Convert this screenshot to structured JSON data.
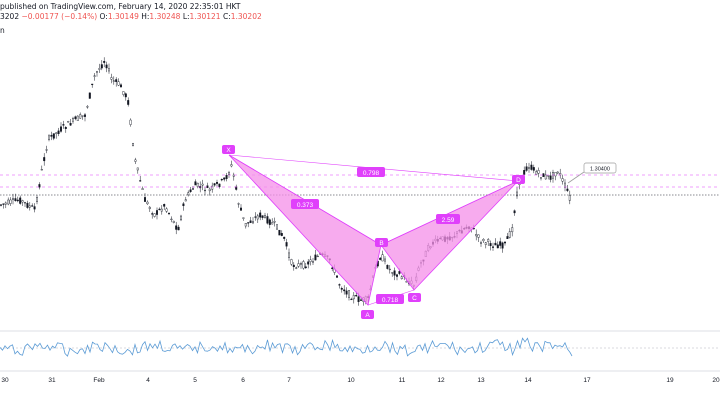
{
  "header": {
    "published": "published on TradingView.com, February 14, 2020 22:35:01 HKT",
    "symbol_fragment": "3202",
    "change": "−0.00177 (−0.14%)",
    "open_label": "O:",
    "open": "1.30149",
    "high_label": "H:",
    "high": "1.30248",
    "low_label": "L:",
    "low": "1.30121",
    "close_label": "C:",
    "close": "1.30202",
    "left_edge_text": "n"
  },
  "price_tag": "1.30400",
  "colors": {
    "pattern_fill": "#f48fe8",
    "pattern_stroke": "#e040fb",
    "label_bg": "#e040fb",
    "candle": "#131722",
    "rsi_line": "#5b9bd5",
    "dashed_level": "#e040fb",
    "price_line": "#131722",
    "tag_border": "#9e9e9e"
  },
  "pattern": {
    "points": {
      "X": "X",
      "A": "A",
      "B": "B",
      "C": "C",
      "D": "D"
    },
    "ratios": {
      "xb": "0.373",
      "xd": "0.798",
      "ac": "0.718",
      "bd": "2.59"
    }
  },
  "x_axis": {
    "ticks": [
      "30",
      "31",
      "Feb",
      "4",
      "5",
      "6",
      "7",
      "10",
      "11",
      "12",
      "13",
      "14",
      "17",
      "19",
      "20"
    ]
  }
}
